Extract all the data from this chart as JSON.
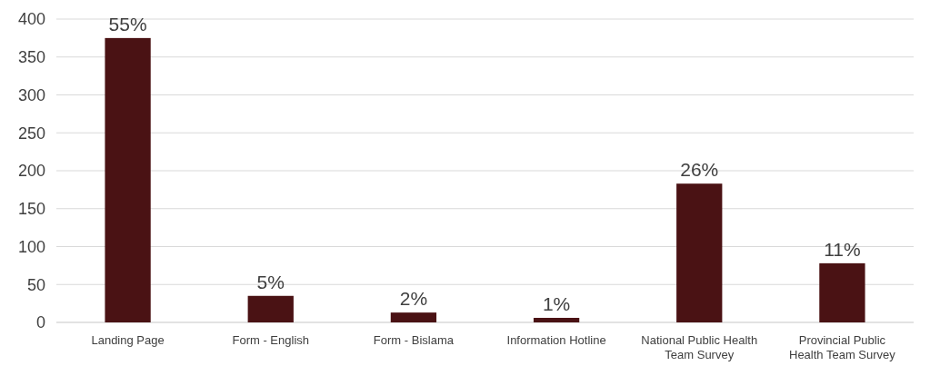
{
  "chart_data": {
    "type": "bar",
    "categories": [
      "Landing Page",
      "Form - English",
      "Form - Bislama",
      "Information Hotline",
      "National Public Health Team Survey",
      "Provincial Public Health Team Survey"
    ],
    "values": [
      375,
      35,
      13,
      6,
      183,
      78
    ],
    "color": "#4a1214",
    "annotations": [
      {
        "text": "55%",
        "x": "Landing Page",
        "y": 375
      },
      {
        "text": "5%",
        "x": "Form - English",
        "y": 35
      },
      {
        "text": "2%",
        "x": "Form - Bislama",
        "y": 13
      },
      {
        "text": "1%",
        "x": "Information Hotline",
        "y": 6
      },
      {
        "text": "26%",
        "x": "National Public Health Team Survey",
        "y": 183
      },
      {
        "text": "11%",
        "x": "Provincial Public Health Team Survey",
        "y": 78
      }
    ],
    "ylim": [
      0,
      400
    ],
    "yticks": [
      0,
      50,
      100,
      150,
      200,
      250,
      300,
      350,
      400
    ],
    "grid": "y"
  }
}
